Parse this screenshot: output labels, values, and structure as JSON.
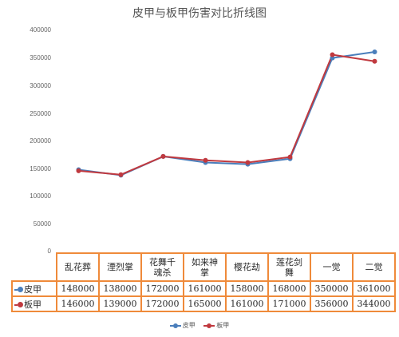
{
  "chart_data": {
    "type": "line",
    "title": "皮甲与板甲伤害对比折线图",
    "categories": [
      "乱花葬",
      "湮烈掌",
      "花舞千魂杀",
      "如来神掌",
      "樱花劫",
      "莲花剑舞",
      "一觉",
      "二觉"
    ],
    "series": [
      {
        "name": "皮甲",
        "color": "#4a7ebb",
        "values": [
          148000,
          138000,
          172000,
          161000,
          158000,
          168000,
          350000,
          361000
        ]
      },
      {
        "name": "板甲",
        "color": "#c0393f",
        "values": [
          146000,
          139000,
          172000,
          165000,
          161000,
          171000,
          356000,
          344000
        ]
      }
    ],
    "xlabel": "",
    "ylabel": "",
    "ylim": [
      0,
      400000
    ],
    "yticks": [
      "400000",
      "350000",
      "300000",
      "250000",
      "200000",
      "150000",
      "100000",
      "50000",
      "0"
    ],
    "grid": false,
    "legend": "bottom"
  },
  "table": {
    "header_lines": [
      [
        "乱花葬"
      ],
      [
        "湮烈掌"
      ],
      [
        "花舞千",
        "魂杀"
      ],
      [
        "如来神",
        "掌"
      ],
      [
        "樱花劫"
      ],
      [
        "莲花剑",
        "舞"
      ],
      [
        "一觉"
      ],
      [
        "二觉"
      ]
    ],
    "rows": [
      {
        "label": "皮甲",
        "cells": [
          "148000",
          "138000",
          "172000",
          "161000",
          "158000",
          "168000",
          "350000",
          "361000"
        ]
      },
      {
        "label": "板甲",
        "cells": [
          "146000",
          "139000",
          "172000",
          "165000",
          "161000",
          "171000",
          "356000",
          "344000"
        ]
      }
    ]
  }
}
